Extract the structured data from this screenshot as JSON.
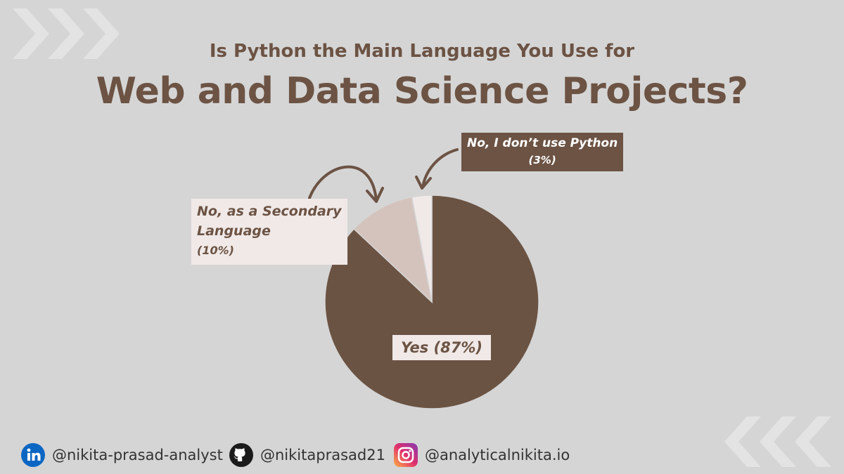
{
  "header": {
    "subtitle": "Is Python the Main Language You Use for",
    "title": "Web and Data Science Projects?"
  },
  "chart_data": {
    "type": "pie",
    "title": "Web and Data Science Projects?",
    "subtitle": "Is Python the Main Language You Use for",
    "slices": [
      {
        "label": "Yes (87%)",
        "value": 87,
        "color": "#6b5343"
      },
      {
        "label": "No, as a Secondary Language (10%)",
        "value": 10,
        "color": "#d4c3bd"
      },
      {
        "label": "No, I don’t use Python (3%)",
        "value": 3,
        "color": "#f0e9e7"
      }
    ]
  },
  "labels": {
    "yes": "Yes (87%)",
    "secondary_line1": "No, as a Secondary",
    "secondary_line2": "Language",
    "secondary_line3": "(10%)",
    "no_line1": "No, I don’t use Python",
    "no_line2": "(3%)"
  },
  "footer": {
    "linkedin": "@nikita-prasad-analyst",
    "github": "@nikitaprasad21",
    "instagram": "@analyticalnikita.io"
  },
  "icons": {
    "linkedin": "linkedin-icon",
    "github": "github-icon",
    "instagram": "instagram-icon",
    "decor": "chevron-right-icon"
  },
  "colors": {
    "background": "#d5d5d5",
    "accent": "#6c5344"
  }
}
